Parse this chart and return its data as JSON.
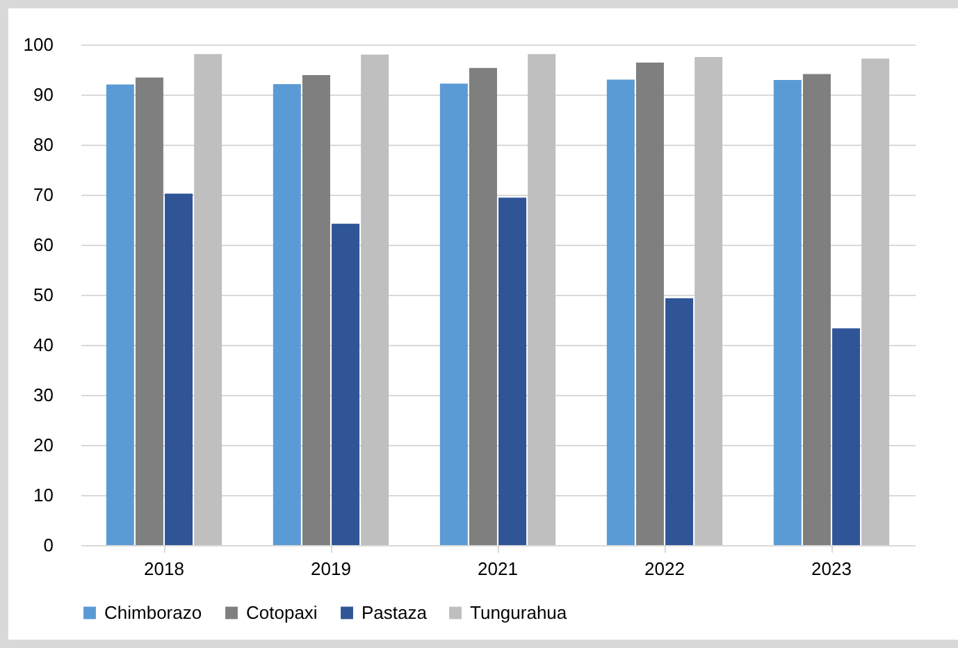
{
  "chart_data": {
    "type": "bar",
    "categories": [
      "2018",
      "2019",
      "2021",
      "2022",
      "2023"
    ],
    "series": [
      {
        "name": "Chimborazo",
        "color": "#5b9bd5",
        "values": [
          92.0,
          92.1,
          92.2,
          93.0,
          92.9
        ]
      },
      {
        "name": "Cotopaxi",
        "color": "#7f7f7f",
        "values": [
          93.4,
          93.9,
          95.3,
          96.4,
          94.1
        ]
      },
      {
        "name": "Pastaza",
        "color": "#2f5597",
        "values": [
          70.2,
          64.2,
          69.4,
          49.3,
          43.3
        ]
      },
      {
        "name": "Tungurahua",
        "color": "#bfbfbf",
        "values": [
          98.1,
          98.0,
          98.1,
          97.5,
          97.2
        ]
      }
    ],
    "ylim": [
      0,
      100
    ],
    "yticks": [
      0,
      10,
      20,
      30,
      40,
      50,
      60,
      70,
      80,
      90,
      100
    ],
    "grid": "y",
    "legend": "bottom"
  }
}
